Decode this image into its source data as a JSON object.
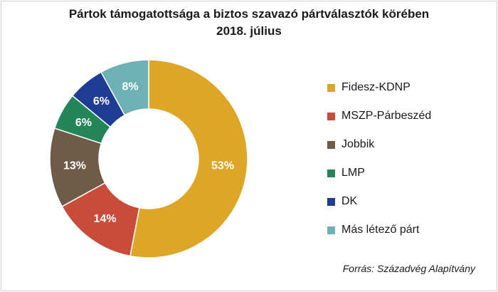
{
  "chart_data": {
    "type": "pie",
    "title": "Pártok támogatottsága a biztos szavazó pártválasztók körében",
    "subtitle": "2018. július",
    "donut": true,
    "categories": [
      "Fidesz-KDNP",
      "MSZP-Párbeszéd",
      "Jobbik",
      "LMP",
      "DK",
      "Más létező párt"
    ],
    "values": [
      53,
      14,
      13,
      6,
      6,
      8
    ],
    "labels": [
      "53%",
      "14%",
      "13%",
      "6%",
      "6%",
      "8%"
    ],
    "colors": [
      "#DDA627",
      "#C94C3A",
      "#6E5C48",
      "#24855A",
      "#1F3C93",
      "#6EB1B5"
    ],
    "legend_position": "right",
    "source": "Forrás: Századvég Alapítvány"
  }
}
